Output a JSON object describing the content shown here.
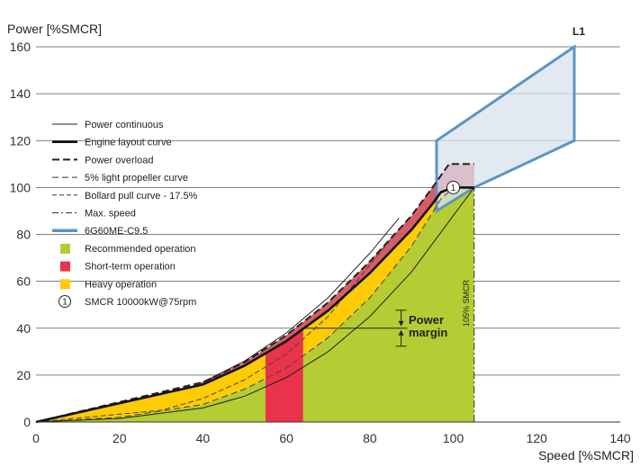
{
  "chart_data": {
    "type": "area",
    "ylabel": "Power [%SMCR]",
    "xlabel": "Speed [%SMCR]",
    "xlim": [
      0,
      140
    ],
    "ylim": [
      0,
      160
    ],
    "xticks": [
      "0",
      "20",
      "40",
      "60",
      "80",
      "100",
      "120",
      "140"
    ],
    "yticks": [
      "0",
      "20",
      "40",
      "60",
      "80",
      "100",
      "120",
      "140",
      "160"
    ],
    "grid": "horizontal",
    "legend_position": "left",
    "legend": [
      {
        "name": "Power continuous",
        "style": "thin-line"
      },
      {
        "name": "Engine layout curve",
        "style": "thick-line"
      },
      {
        "name": "Power overload",
        "style": "thick-dash"
      },
      {
        "name": "5% light propeller curve",
        "style": "thin-dash"
      },
      {
        "name": "Bollard pull curve - 17.5%",
        "style": "thin-short-dash"
      },
      {
        "name": "Max. speed",
        "style": "dash-dot"
      },
      {
        "name": "6G60ME-C9.5",
        "style": "blue-line"
      },
      {
        "name": "Recommended operation",
        "style": "swatch-green"
      },
      {
        "name": "Short-term operation",
        "style": "swatch-red"
      },
      {
        "name": "Heavy operation",
        "style": "swatch-yellow"
      },
      {
        "name": "SMCR 10000kW@75rpm",
        "style": "circle-marker"
      }
    ],
    "colors": {
      "recommended": "#b5cc34",
      "short_term": "#e8334a",
      "heavy": "#ffcb05",
      "overload_zone": "#d44a55",
      "layout_box_fill": "#d9e1ec",
      "layout_box_stroke": "#5b95c1"
    },
    "series": [
      {
        "key": "layout",
        "values": [
          [
            0,
            0
          ],
          [
            40,
            16
          ],
          [
            50,
            24
          ],
          [
            60,
            34.5
          ],
          [
            70,
            47.5
          ],
          [
            80,
            63.5
          ],
          [
            90,
            82
          ],
          [
            95,
            93
          ],
          [
            97,
            98
          ],
          [
            100,
            100
          ],
          [
            105,
            100
          ]
        ]
      },
      {
        "key": "overload",
        "values": [
          [
            0,
            0
          ],
          [
            40,
            17
          ],
          [
            50,
            25.5
          ],
          [
            60,
            37
          ],
          [
            70,
            51
          ],
          [
            80,
            68.5
          ],
          [
            90,
            88
          ],
          [
            95,
            100
          ],
          [
            99,
            110
          ],
          [
            105,
            110
          ]
        ]
      },
      {
        "key": "propeller",
        "values": [
          [
            0,
            0
          ],
          [
            20,
            1.5
          ],
          [
            40,
            6
          ],
          [
            50,
            11
          ],
          [
            60,
            19
          ],
          [
            70,
            30
          ],
          [
            80,
            45
          ],
          [
            90,
            64
          ],
          [
            100,
            88
          ],
          [
            105,
            100
          ]
        ]
      },
      {
        "key": "light_propeller",
        "values": [
          [
            0,
            0
          ],
          [
            20,
            2
          ],
          [
            40,
            7.5
          ],
          [
            50,
            14
          ],
          [
            60,
            23
          ],
          [
            70,
            36
          ],
          [
            80,
            53
          ],
          [
            90,
            75
          ],
          [
            97,
            95
          ],
          [
            100,
            100
          ]
        ]
      },
      {
        "key": "bollard_pull",
        "values": [
          [
            0,
            0
          ],
          [
            30,
            5
          ],
          [
            40,
            10
          ],
          [
            50,
            18
          ],
          [
            60,
            29
          ],
          [
            70,
            45
          ],
          [
            80,
            67
          ],
          [
            86,
            80
          ]
        ]
      },
      {
        "key": "power_continuous",
        "values": [
          [
            40,
            17
          ],
          [
            50,
            26
          ],
          [
            60,
            38
          ],
          [
            70,
            53
          ],
          [
            80,
            72
          ],
          [
            87,
            87
          ]
        ]
      }
    ],
    "max_speed_x": 105,
    "power_margin_line_y": 40,
    "short_term_x_range": [
      55,
      64
    ],
    "engine_box_6G60ME": [
      [
        96,
        90
      ],
      [
        96,
        120
      ],
      [
        129,
        160
      ],
      [
        129,
        120
      ],
      [
        105,
        100
      ]
    ],
    "smcr_point": {
      "x": 100,
      "y": 100,
      "label": "1"
    },
    "annotations": {
      "power_margin_line1": "Power",
      "power_margin_line2": "margin",
      "max_speed_label": "105% SMCR",
      "layout_point": "L1"
    }
  }
}
